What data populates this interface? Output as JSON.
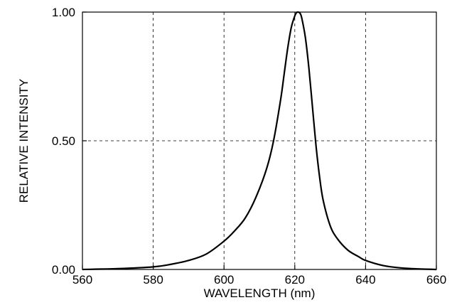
{
  "chart_data": {
    "type": "line",
    "xlabel": "WAVELENGTH (nm)",
    "ylabel": "RELATIVE INTENSITY",
    "xlim": [
      560,
      660
    ],
    "ylim": [
      0,
      1
    ],
    "x_ticks": [
      560,
      580,
      600,
      620,
      640,
      660
    ],
    "x_tick_labels": [
      "560",
      "580",
      "600",
      "620",
      "640",
      "660"
    ],
    "y_ticks": [
      0,
      0.5,
      1
    ],
    "y_tick_labels": [
      "0.00",
      "0.50",
      "1.00"
    ],
    "grid": true,
    "series": [
      {
        "x": [
          560,
          570,
          580,
          585,
          590,
          595,
          600,
          603,
          606,
          609,
          612,
          614,
          616,
          617,
          618,
          619,
          620,
          620.5,
          621,
          621.5,
          622,
          623,
          624,
          625,
          626,
          627,
          628,
          630,
          632,
          635,
          638,
          640,
          645,
          650,
          655,
          660
        ],
        "values": [
          0.0,
          0.003,
          0.01,
          0.02,
          0.035,
          0.06,
          0.11,
          0.15,
          0.2,
          0.28,
          0.39,
          0.5,
          0.66,
          0.76,
          0.86,
          0.94,
          0.985,
          0.998,
          1.0,
          0.995,
          0.975,
          0.9,
          0.78,
          0.63,
          0.48,
          0.36,
          0.27,
          0.17,
          0.12,
          0.075,
          0.05,
          0.035,
          0.015,
          0.006,
          0.002,
          0.0
        ]
      }
    ]
  }
}
